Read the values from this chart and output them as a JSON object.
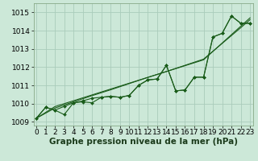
{
  "xlabel": "Graphe pression niveau de la mer (hPa)",
  "background_color": "#cce8d8",
  "grid_color": "#aaccbb",
  "line_color": "#1a5c1a",
  "ylim": [
    1008.8,
    1015.5
  ],
  "xlim": [
    -0.3,
    23.3
  ],
  "yticks": [
    1009,
    1010,
    1011,
    1012,
    1013,
    1014,
    1015
  ],
  "xticks": [
    0,
    1,
    2,
    3,
    4,
    5,
    6,
    7,
    8,
    9,
    10,
    11,
    12,
    13,
    14,
    15,
    16,
    17,
    18,
    19,
    20,
    21,
    22,
    23
  ],
  "line_nomarker_1": [
    1009.2,
    1009.52,
    1009.84,
    1010.0,
    1010.16,
    1010.32,
    1010.48,
    1010.64,
    1010.8,
    1010.96,
    1011.12,
    1011.28,
    1011.44,
    1011.6,
    1011.76,
    1011.92,
    1012.08,
    1012.24,
    1012.4,
    1012.86,
    1013.32,
    1013.78,
    1014.24,
    1014.7
  ],
  "line_nomarker_2": [
    1009.2,
    1009.48,
    1009.76,
    1009.93,
    1010.1,
    1010.27,
    1010.44,
    1010.6,
    1010.76,
    1010.93,
    1011.1,
    1011.27,
    1011.44,
    1011.6,
    1011.76,
    1011.93,
    1012.1,
    1012.27,
    1012.44,
    1012.87,
    1013.3,
    1013.73,
    1014.16,
    1014.6
  ],
  "line_marker_1": [
    1009.2,
    1009.8,
    1009.65,
    1009.4,
    1010.05,
    1010.15,
    1010.3,
    1010.35,
    1010.4,
    1010.35,
    1010.45,
    1011.0,
    1011.3,
    1011.35,
    1012.1,
    1010.7,
    1010.75,
    1011.45,
    1011.45,
    1013.65,
    1013.85,
    1014.8,
    1014.4,
    1014.4
  ],
  "line_marker_2": [
    1009.2,
    1009.8,
    1009.65,
    1009.85,
    1010.05,
    1010.1,
    1010.05,
    1010.35,
    1010.4,
    1010.35,
    1010.45,
    1011.0,
    1011.3,
    1011.35,
    1012.1,
    1010.7,
    1010.75,
    1011.45,
    1011.45,
    1013.65,
    1013.85,
    1014.8,
    1014.4,
    1014.4
  ],
  "xlabel_fontsize": 7.5,
  "tick_fontsize": 6.5
}
